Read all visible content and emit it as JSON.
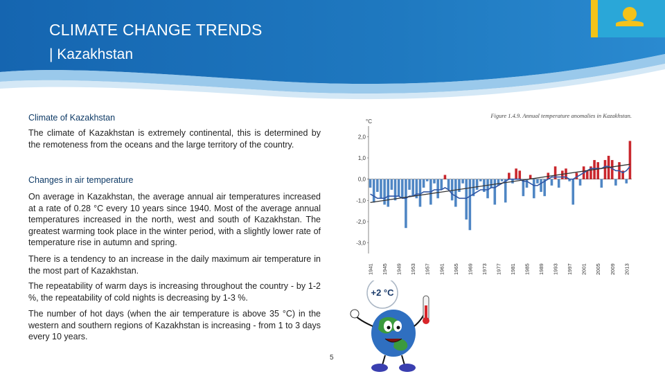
{
  "header": {
    "title": "CLIMATE CHANGE TRENDS",
    "subtitle": "| Kazakhstan"
  },
  "body": {
    "section1_heading": "Climate of Kazakhstan",
    "section1_text": "The climate of Kazakhstan is extremely continental, this is determined by the remoteness from the oceans and the large territory of the country.",
    "section2_heading": "Changes in air temperature",
    "para1": "On average in Kazakhstan, the average annual air temperatures increased at a rate of 0.28 °C every 10 years since 1940. Most of the average annual temperatures increased in the north, west and south of Kazakhstan. The greatest warming took place in the winter period, with a slightly lower rate of temperature rise in autumn and spring.",
    "para2": "There is a tendency to an increase in the daily maximum air temperature in the most part of Kazakhstan.",
    "para3": "The repeatability of warm days is increasing throughout the country - by 1-2 %, the repeatability of cold nights is decreasing by 1-3 %.",
    "para4": "The number of hot days (when the air temperature is above 35 °C) in the western and southern regions of Kazakhstan is increasing - from 1 to 3 days every 10 years."
  },
  "mascot": {
    "badge": "+2 °C"
  },
  "footer": {
    "page_number": "5"
  },
  "colors": {
    "header_blue": "#1f79c0",
    "positive_bar": "#c9272d",
    "negative_bar": "#4f86c4",
    "trend_line": "#333333",
    "smooth_line": "#2f55a4"
  },
  "chart_data": {
    "type": "bar",
    "title": "Figure 1.4.9. Annual temperature anomalies in Kazakhstan.",
    "ylabel": "°C",
    "ylim": [
      -3.5,
      2.5
    ],
    "y_ticks": [
      "2,0",
      "1,0",
      "0,0",
      "-1,0",
      "-2,0",
      "-3,0"
    ],
    "y_tick_values": [
      2,
      1,
      0,
      -1,
      -2,
      -3
    ],
    "x_ticks": [
      "1941",
      "1945",
      "1949",
      "1953",
      "1957",
      "1961",
      "1965",
      "1969",
      "1973",
      "1977",
      "1981",
      "1985",
      "1989",
      "1993",
      "1997",
      "2001",
      "2005",
      "2009",
      "2013"
    ],
    "years_start": 1941,
    "values": [
      -0.4,
      -1.1,
      -0.6,
      -0.9,
      -1.2,
      -1.3,
      -0.5,
      -1.0,
      -0.8,
      -0.9,
      -2.3,
      -0.5,
      -0.8,
      -0.9,
      -1.3,
      -0.4,
      -0.1,
      -1.2,
      -0.2,
      -0.9,
      -0.5,
      0.2,
      -0.5,
      -1.0,
      -1.3,
      -0.6,
      -0.2,
      -1.9,
      -2.4,
      -0.8,
      -0.5,
      -0.1,
      -0.6,
      -0.9,
      -0.4,
      -1.2,
      -0.3,
      -0.1,
      -1.1,
      0.3,
      -0.2,
      0.5,
      0.4,
      -0.8,
      -0.4,
      0.2,
      -0.9,
      -0.2,
      -0.6,
      -0.8,
      0.3,
      -0.3,
      0.6,
      -0.4,
      0.4,
      0.5,
      -0.1,
      -1.2,
      0.3,
      -0.3,
      0.6,
      0.4,
      0.6,
      0.9,
      0.8,
      -0.4,
      0.9,
      1.1,
      0.9,
      -0.3,
      0.8,
      0.4,
      -0.2,
      1.8
    ],
    "trend": {
      "start": -1.1,
      "end": 0.7
    },
    "smooth": [
      -0.7,
      -0.8,
      -0.9,
      -0.9,
      -0.9,
      -0.8,
      -0.8,
      -0.8,
      -0.8,
      -0.9,
      -0.9,
      -0.8,
      -0.8,
      -0.7,
      -0.7,
      -0.6,
      -0.6,
      -0.6,
      -0.5,
      -0.5,
      -0.5,
      -0.4,
      -0.5,
      -0.7,
      -0.8,
      -0.9,
      -0.9,
      -0.9,
      -0.8,
      -0.7,
      -0.6,
      -0.5,
      -0.5,
      -0.5,
      -0.4,
      -0.4,
      -0.3,
      -0.2,
      -0.1,
      0.0,
      0.0,
      0.0,
      0.0,
      -0.1,
      -0.1,
      -0.2,
      -0.3,
      -0.3,
      -0.2,
      -0.1,
      0.0,
      0.1,
      0.1,
      0.1,
      0.1,
      0.1,
      0.0,
      0.0,
      0.1,
      0.2,
      0.3,
      0.4,
      0.5,
      0.5,
      0.5,
      0.5,
      0.6,
      0.6,
      0.5,
      0.4,
      0.4,
      0.3,
      0.4,
      0.6
    ],
    "grid": false
  }
}
